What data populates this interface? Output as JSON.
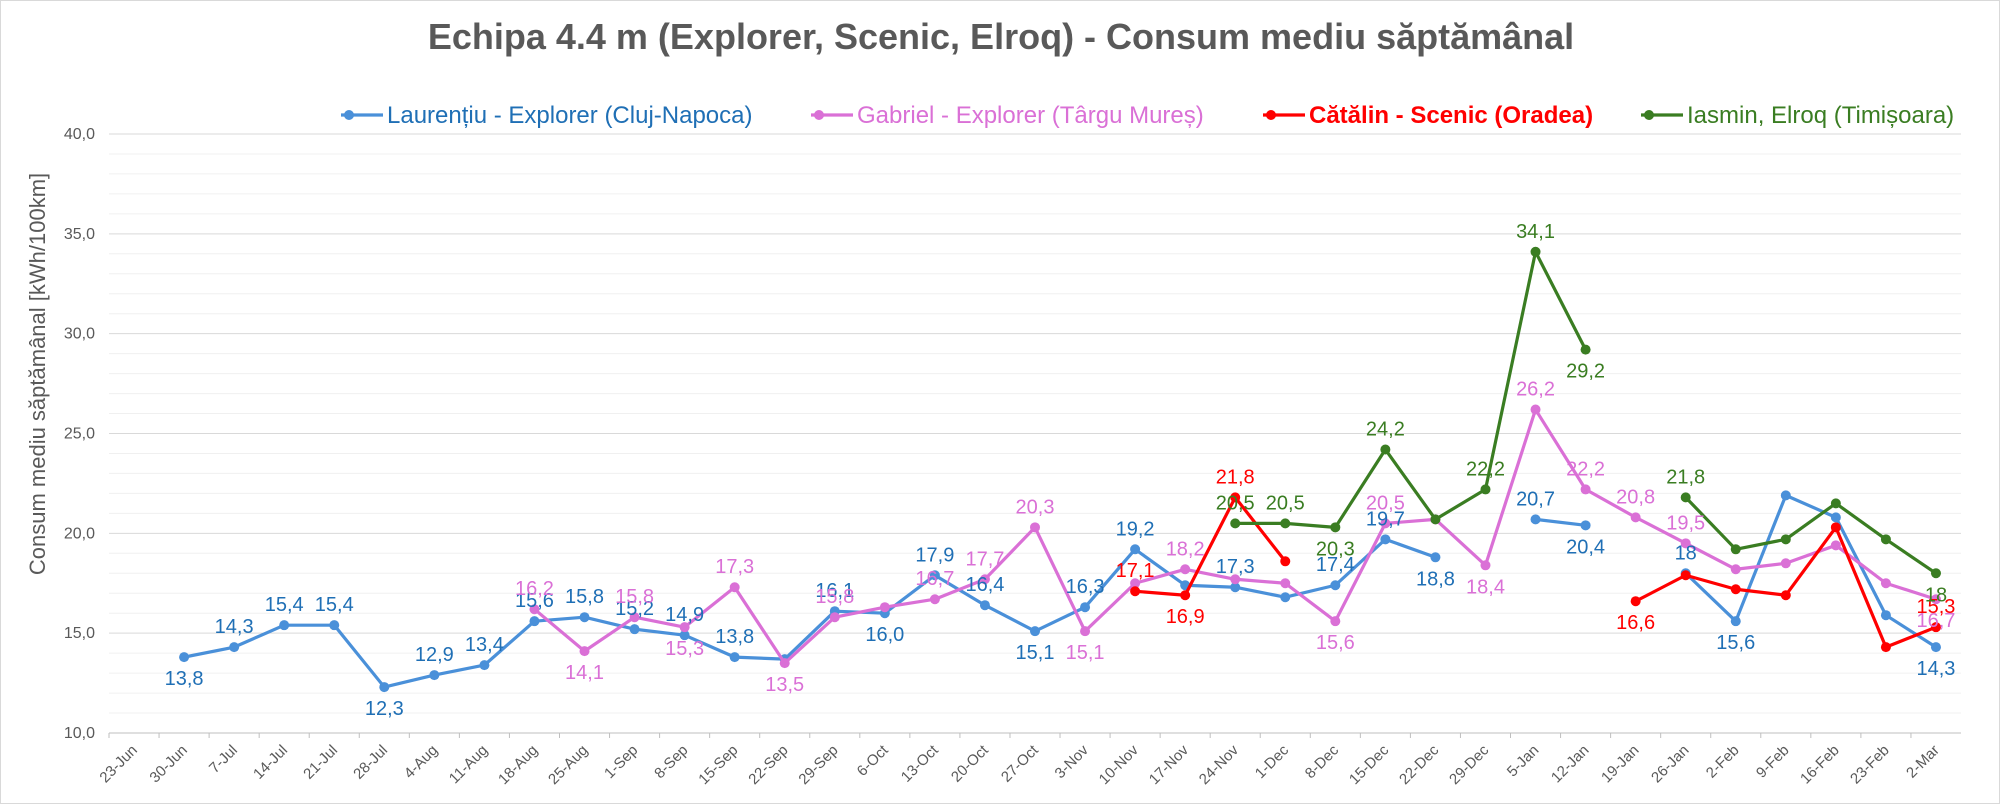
{
  "chart_data": {
    "type": "line",
    "title": "Echipa 4.4 m (Explorer, Scenic, Elroq) - Consum mediu săptămânal",
    "ylabel": "Consum mediu săptămânal [kWh/100km]",
    "xlabel": "",
    "ylim": [
      10,
      40
    ],
    "yticks": [
      "10,0",
      "15,0",
      "20,0",
      "25,0",
      "30,0",
      "35,0",
      "40,0"
    ],
    "grid": true,
    "legend_position": "top",
    "categories": [
      "23-Jun",
      "30-Jun",
      "7-Jul",
      "14-Jul",
      "21-Jul",
      "28-Jul",
      "4-Aug",
      "11-Aug",
      "18-Aug",
      "25-Aug",
      "1-Sep",
      "8-Sep",
      "15-Sep",
      "22-Sep",
      "29-Sep",
      "6-Oct",
      "13-Oct",
      "20-Oct",
      "27-Oct",
      "3-Nov",
      "10-Nov",
      "17-Nov",
      "24-Nov",
      "1-Dec",
      "8-Dec",
      "15-Dec",
      "22-Dec",
      "29-Dec",
      "5-Jan",
      "12-Jan",
      "19-Jan",
      "26-Jan",
      "2-Feb",
      "9-Feb",
      "16-Feb",
      "23-Feb",
      "2-Mar"
    ],
    "series": [
      {
        "name": "Laurențiu - Explorer (Cluj-Napoca)",
        "color": "#4a90d9",
        "label_color": "#1f6fb5",
        "values": [
          null,
          13.8,
          14.3,
          15.4,
          15.4,
          12.3,
          12.9,
          13.4,
          15.6,
          15.8,
          15.2,
          14.9,
          13.8,
          13.7,
          16.1,
          16.0,
          17.9,
          16.4,
          15.1,
          16.3,
          19.2,
          17.4,
          17.3,
          16.8,
          17.4,
          19.7,
          18.8,
          null,
          20.7,
          20.4,
          null,
          18.0,
          15.6,
          21.9,
          20.8,
          15.9,
          14.3
        ],
        "labels": [
          null,
          "13,8",
          "14,3",
          "15,4",
          "15,4",
          "12,3",
          "12,9",
          "13,4",
          "15,6",
          "15,8",
          "15,2",
          "14,9",
          "13,8",
          null,
          "16,1",
          "16,0",
          "17,9",
          "16,4",
          "15,1",
          "16,3",
          "19,2",
          null,
          "17,3",
          null,
          "17,4",
          "19,7",
          "18,8",
          null,
          "20,7",
          "20,4",
          null,
          "18",
          "15,6",
          null,
          null,
          null,
          "14,3"
        ]
      },
      {
        "name": "Gabriel - Explorer (Târgu Mureș)",
        "color": "#da70d6",
        "label_color": "#da70d6",
        "values": [
          null,
          null,
          null,
          null,
          null,
          null,
          null,
          null,
          16.2,
          14.1,
          15.8,
          15.3,
          17.3,
          13.5,
          15.8,
          16.3,
          16.7,
          17.7,
          20.3,
          15.1,
          17.5,
          18.2,
          17.7,
          17.5,
          15.6,
          20.5,
          20.7,
          18.4,
          26.2,
          22.2,
          20.8,
          19.5,
          18.2,
          18.5,
          19.4,
          17.5,
          16.7
        ],
        "labels": [
          null,
          null,
          null,
          null,
          null,
          null,
          null,
          null,
          "16,2",
          "14,1",
          "15,8",
          "15,3",
          "17,3",
          "13,5",
          "15,8",
          null,
          "16,7",
          "17,7",
          "20,3",
          "15,1",
          null,
          "18,2",
          null,
          null,
          "15,6",
          "20,5",
          null,
          "18,4",
          "26,2",
          "22,2",
          "20,8",
          "19,5",
          null,
          null,
          null,
          null,
          "16,7"
        ]
      },
      {
        "name": "Cătălin - Scenic (Oradea)",
        "color": "#ff0000",
        "label_color": "#ff0000",
        "values": [
          null,
          null,
          null,
          null,
          null,
          null,
          null,
          null,
          null,
          null,
          null,
          null,
          null,
          null,
          null,
          null,
          null,
          null,
          null,
          null,
          17.1,
          16.9,
          21.8,
          18.6,
          null,
          null,
          null,
          null,
          null,
          null,
          16.6,
          17.9,
          17.2,
          16.9,
          20.3,
          14.3,
          15.3
        ],
        "labels": [
          null,
          null,
          null,
          null,
          null,
          null,
          null,
          null,
          null,
          null,
          null,
          null,
          null,
          null,
          null,
          null,
          null,
          null,
          null,
          null,
          "17,1",
          "16,9",
          "21,8",
          null,
          null,
          null,
          null,
          null,
          null,
          null,
          "16,6",
          null,
          null,
          null,
          null,
          null,
          "15,3"
        ]
      },
      {
        "name": "Iasmin, Elroq (Timișoara)",
        "color": "#3a7d22",
        "label_color": "#3a7d22",
        "values": [
          null,
          null,
          null,
          null,
          null,
          null,
          null,
          null,
          null,
          null,
          null,
          null,
          null,
          null,
          null,
          null,
          null,
          null,
          null,
          null,
          null,
          null,
          20.5,
          20.5,
          20.3,
          24.2,
          20.7,
          22.2,
          34.1,
          29.2,
          null,
          21.8,
          19.2,
          19.7,
          21.5,
          19.7,
          18.0
        ],
        "labels": [
          null,
          null,
          null,
          null,
          null,
          null,
          null,
          null,
          null,
          null,
          null,
          null,
          null,
          null,
          null,
          null,
          null,
          null,
          null,
          null,
          null,
          null,
          "20,5",
          "20,5",
          "20,3",
          "24,2",
          null,
          "22,2",
          "34,1",
          "29,2",
          null,
          "21,8",
          null,
          null,
          null,
          null,
          "18"
        ]
      }
    ]
  }
}
